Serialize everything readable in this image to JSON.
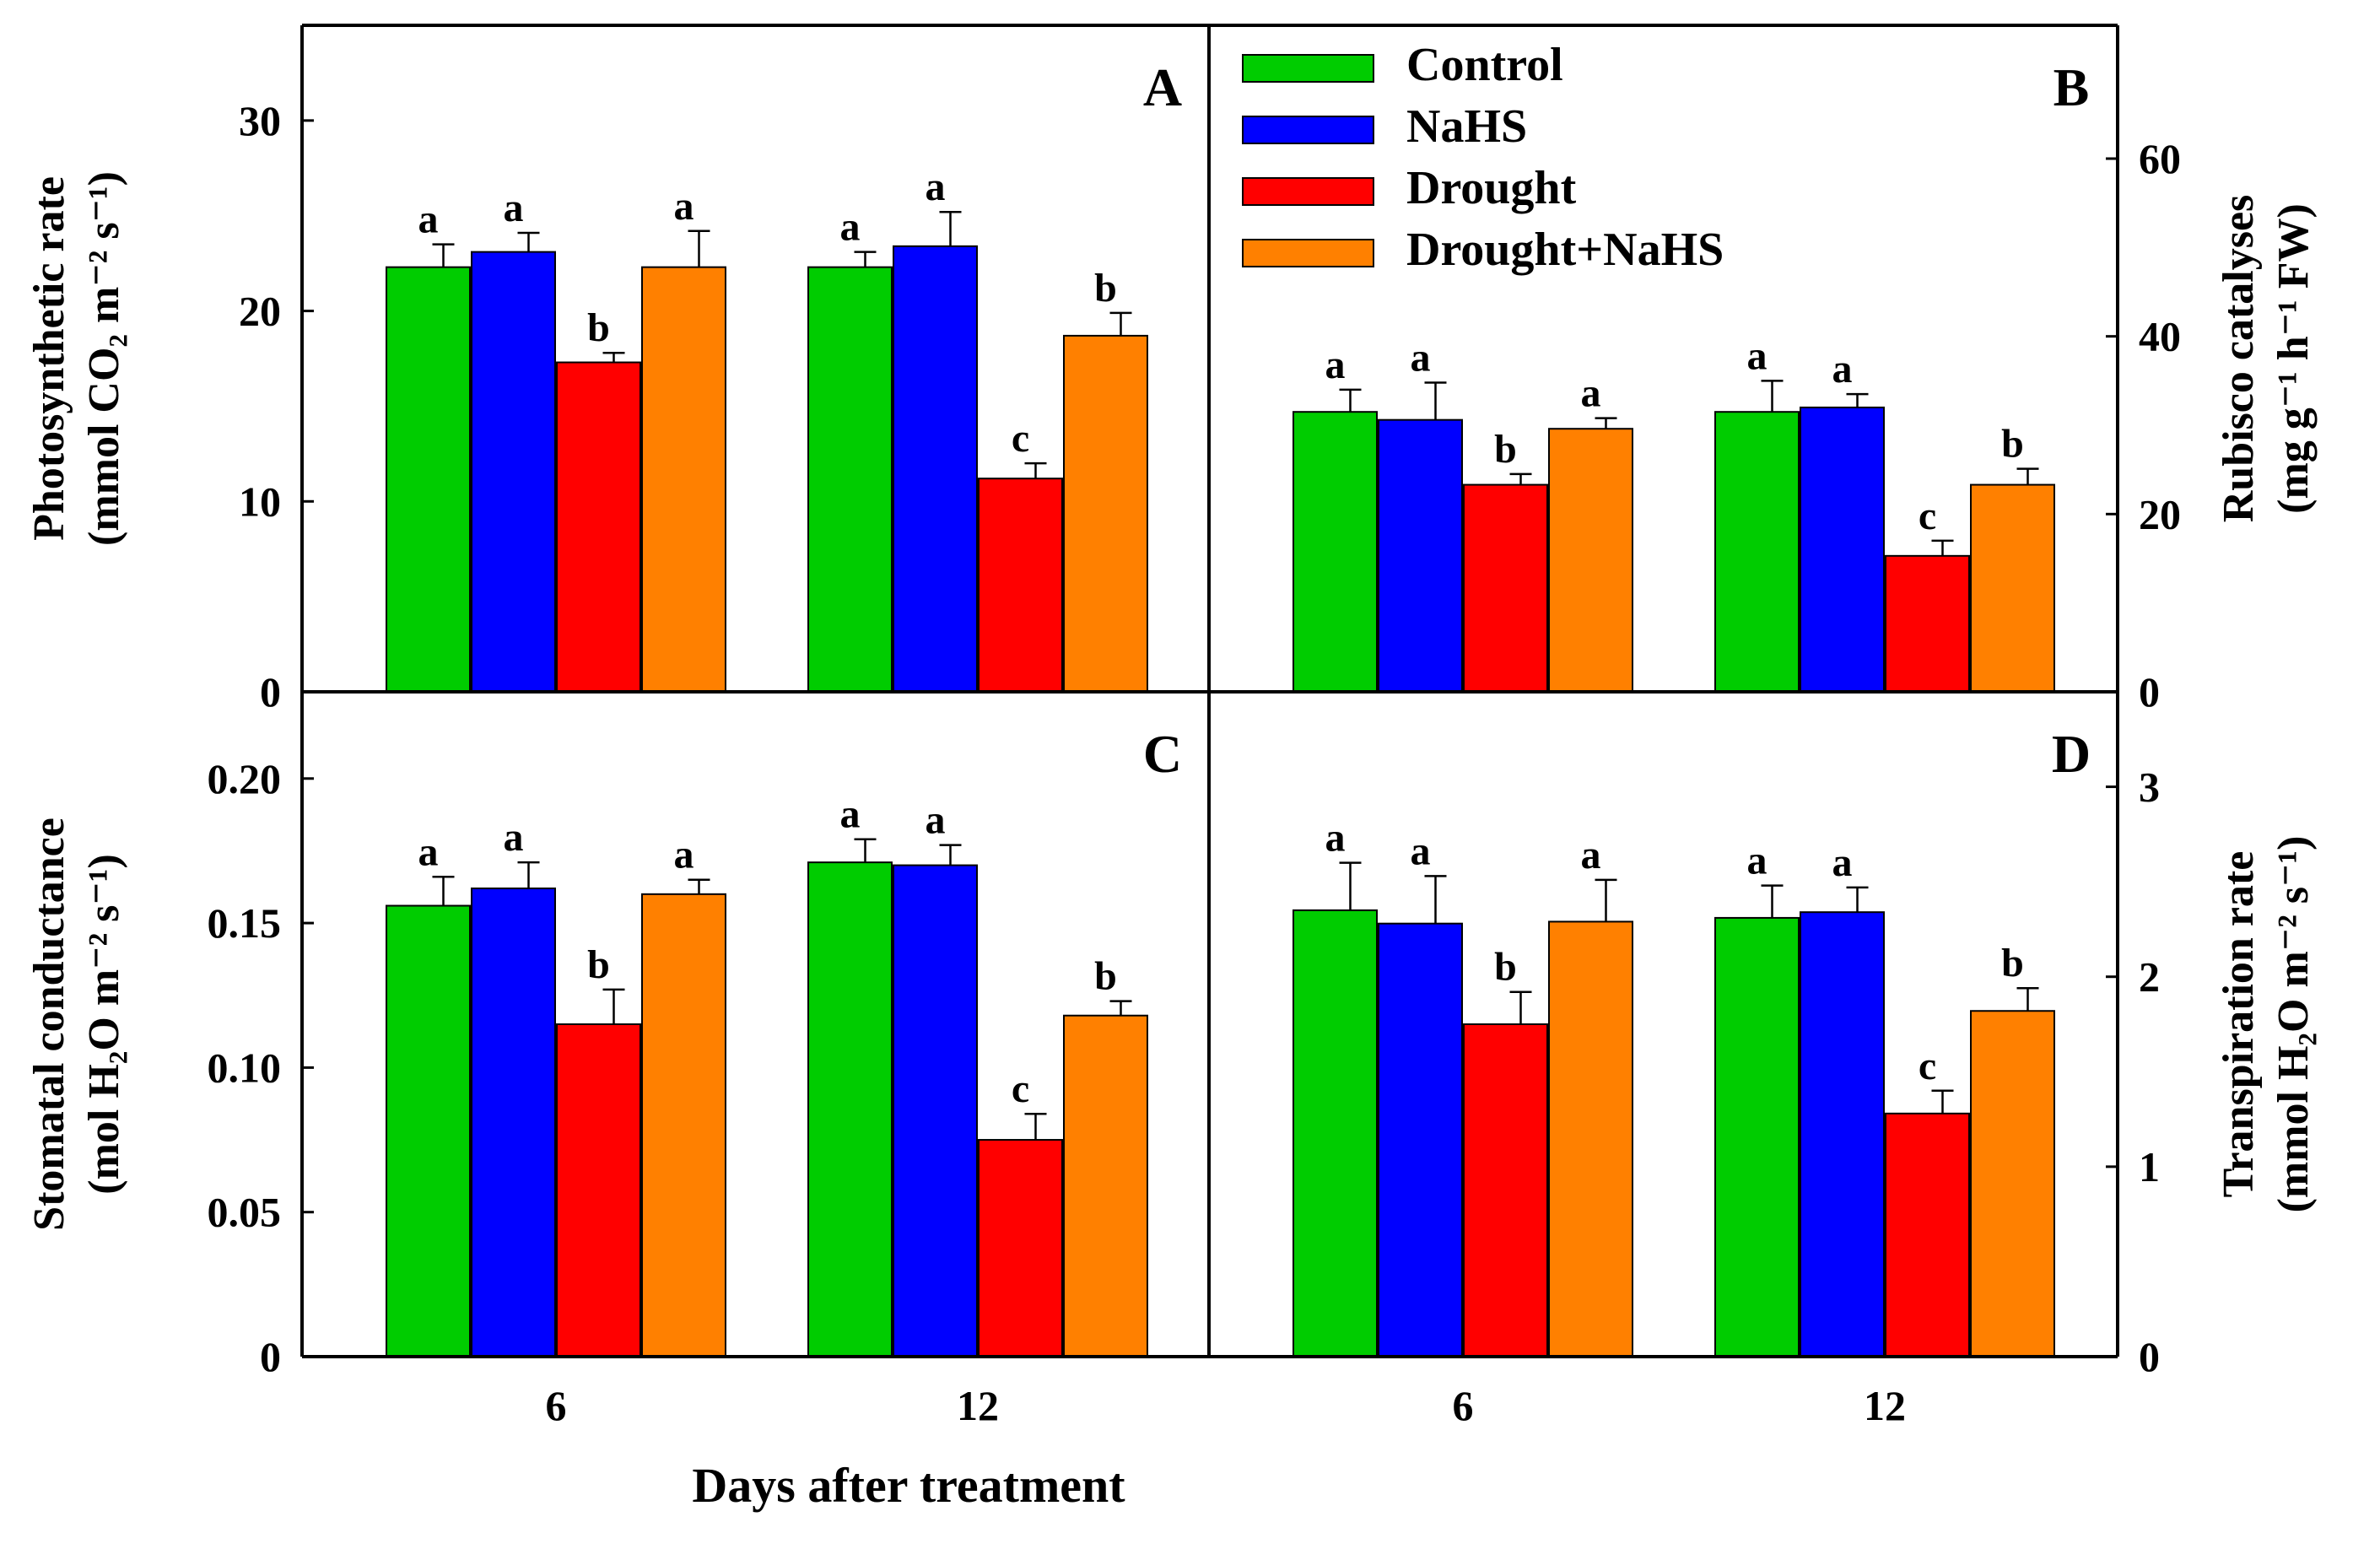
{
  "figure": {
    "xlabel": "Days after treatment",
    "colors": {
      "Control": "#00cc00",
      "NaHS": "#0000ff",
      "Drought": "#ff0000",
      "Drought+NaHS": "#ff8000"
    }
  },
  "legend": {
    "entries": [
      "Control",
      "NaHS",
      "Drought",
      "Drought+NaHS"
    ]
  },
  "chart_data": [
    {
      "panel": "A",
      "type": "bar",
      "ylabel": [
        "Photosynthetic rate",
        "(mmol CO₂ m⁻² s⁻¹)"
      ],
      "y_axis_side": "left",
      "ylim": [
        0,
        35
      ],
      "yticks": [
        0,
        10,
        20,
        30
      ],
      "categories": [
        "6",
        "12"
      ],
      "series": [
        {
          "name": "Control",
          "values": [
            22.3,
            22.3
          ],
          "errors": [
            1.2,
            0.8
          ],
          "letters": [
            "a",
            "a"
          ]
        },
        {
          "name": "NaHS",
          "values": [
            23.1,
            23.4
          ],
          "errors": [
            1.0,
            1.8
          ],
          "letters": [
            "a",
            "a"
          ]
        },
        {
          "name": "Drought",
          "values": [
            17.3,
            11.2
          ],
          "errors": [
            0.5,
            0.8
          ],
          "letters": [
            "b",
            "c"
          ]
        },
        {
          "name": "Drought+NaHS",
          "values": [
            22.3,
            18.7
          ],
          "errors": [
            1.9,
            1.2
          ],
          "letters": [
            "a",
            "b"
          ]
        }
      ]
    },
    {
      "panel": "B",
      "type": "bar",
      "ylabel": [
        "Rubisco catalyses",
        "(mg g⁻¹ h⁻¹ FW)"
      ],
      "y_axis_side": "right",
      "ylim": [
        0,
        75
      ],
      "yticks": [
        0,
        20,
        40,
        60
      ],
      "categories": [
        "6",
        "12"
      ],
      "series": [
        {
          "name": "Control",
          "values": [
            31.5,
            31.5
          ],
          "errors": [
            2.5,
            3.5
          ],
          "letters": [
            "a",
            "a"
          ]
        },
        {
          "name": "NaHS",
          "values": [
            30.6,
            32.0
          ],
          "errors": [
            4.2,
            1.5
          ],
          "letters": [
            "a",
            "a"
          ]
        },
        {
          "name": "Drought",
          "values": [
            23.3,
            15.3
          ],
          "errors": [
            1.2,
            1.7
          ],
          "letters": [
            "b",
            "c"
          ]
        },
        {
          "name": "Drought+NaHS",
          "values": [
            29.6,
            23.3
          ],
          "errors": [
            1.2,
            1.8
          ],
          "letters": [
            "a",
            "b"
          ]
        }
      ]
    },
    {
      "panel": "C",
      "type": "bar",
      "ylabel": [
        "Stomatal conductance",
        "(mol H₂O m⁻² s⁻¹)"
      ],
      "y_axis_side": "left",
      "ylim": [
        0,
        0.23
      ],
      "yticks": [
        "0",
        "0.05",
        "0.10",
        "0.15",
        "0.20"
      ],
      "categories": [
        "6",
        "12"
      ],
      "series": [
        {
          "name": "Control",
          "values": [
            0.156,
            0.171
          ],
          "errors": [
            0.01,
            0.008
          ],
          "letters": [
            "a",
            "a"
          ]
        },
        {
          "name": "NaHS",
          "values": [
            0.162,
            0.17
          ],
          "errors": [
            0.009,
            0.007
          ],
          "letters": [
            "a",
            "a"
          ]
        },
        {
          "name": "Drought",
          "values": [
            0.115,
            0.075
          ],
          "errors": [
            0.012,
            0.009
          ],
          "letters": [
            "b",
            "c"
          ]
        },
        {
          "name": "Drought+NaHS",
          "values": [
            0.16,
            0.118
          ],
          "errors": [
            0.005,
            0.005
          ],
          "letters": [
            "a",
            "b"
          ]
        }
      ]
    },
    {
      "panel": "D",
      "type": "bar",
      "ylabel": [
        "Transpiration rate",
        "(mmol H₂O m⁻² s⁻¹)"
      ],
      "y_axis_side": "right",
      "ylim": [
        0,
        3.5
      ],
      "yticks": [
        0,
        1,
        2,
        3
      ],
      "categories": [
        "6",
        "12"
      ],
      "series": [
        {
          "name": "Control",
          "values": [
            2.35,
            2.31
          ],
          "errors": [
            0.25,
            0.17
          ],
          "letters": [
            "a",
            "a"
          ]
        },
        {
          "name": "NaHS",
          "values": [
            2.28,
            2.34
          ],
          "errors": [
            0.25,
            0.13
          ],
          "letters": [
            "a",
            "a"
          ]
        },
        {
          "name": "Drought",
          "values": [
            1.75,
            1.28
          ],
          "errors": [
            0.17,
            0.12
          ],
          "letters": [
            "b",
            "c"
          ]
        },
        {
          "name": "Drought+NaHS",
          "values": [
            2.29,
            1.82
          ],
          "errors": [
            0.22,
            0.12
          ],
          "letters": [
            "a",
            "b"
          ]
        }
      ]
    }
  ]
}
